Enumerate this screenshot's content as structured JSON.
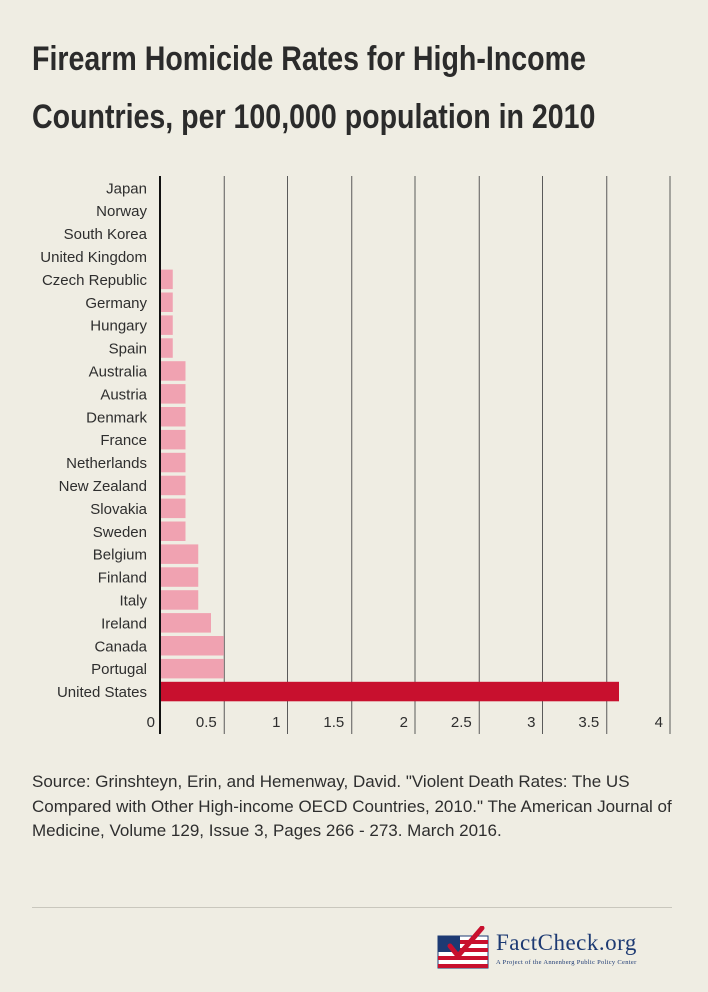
{
  "chart_data": {
    "type": "bar",
    "orientation": "horizontal",
    "title_lines": [
      "Firearm Homicide Rates for High-Income",
      "Countries, per 100,000 population in 2010"
    ],
    "categories": [
      "Japan",
      "Norway",
      "South Korea",
      "United Kingdom",
      "Czech Republic",
      "Germany",
      "Hungary",
      "Spain",
      "Australia",
      "Austria",
      "Denmark",
      "France",
      "Netherlands",
      "New Zealand",
      "Slovakia",
      "Sweden",
      "Belgium",
      "Finland",
      "Italy",
      "Ireland",
      "Canada",
      "Portugal",
      "United States"
    ],
    "values": [
      0,
      0,
      0,
      0,
      0.1,
      0.1,
      0.1,
      0.1,
      0.2,
      0.2,
      0.2,
      0.2,
      0.2,
      0.2,
      0.2,
      0.2,
      0.3,
      0.3,
      0.3,
      0.4,
      0.5,
      0.5,
      3.6
    ],
    "highlight": "United States",
    "xlim": [
      0,
      4
    ],
    "xticks": [
      0,
      0.5,
      1,
      1.5,
      2,
      2.5,
      3,
      3.5,
      4
    ],
    "xtick_labels": [
      "0",
      "0.5",
      "1",
      "1.5",
      "2",
      "2.5",
      "3",
      "3.5",
      "4"
    ],
    "grid": true,
    "colors": {
      "bar": "#f0a2b1",
      "highlight": "#c8102e",
      "grid": "#5a5a5a",
      "axis": "#111111"
    }
  },
  "source_text": "Source: Grinshteyn, Erin, and Hemenway, David. \"Violent Death Rates: The US Compared with Other High-income OECD Countries, 2010.\" The American Journal of Medicine, Volume 129, Issue 3, Pages 266 - 273. March 2016.",
  "logo": {
    "name": "FactCheck.org",
    "tagline": "A Project of the Annenberg Public Policy Center"
  }
}
